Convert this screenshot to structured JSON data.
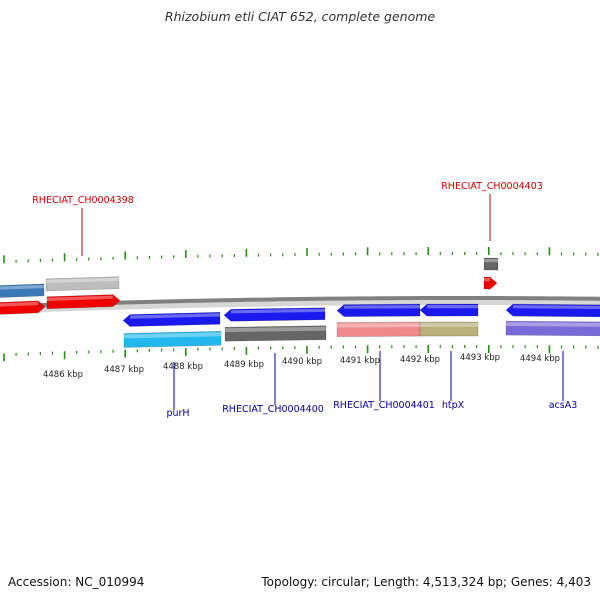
{
  "title": "Rhizobium etli CIAT 652, complete genome",
  "footer": {
    "accession": "Accession: NC_010994",
    "stats": "Topology: circular; Length: 4,513,324 bp; Genes: 4,403"
  },
  "colors": {
    "label_top": "#cc0000",
    "label_bottom": "#00009c",
    "tick": "#2a8a1a",
    "backbone": "#808080",
    "gene_red": "#ee0000",
    "gene_blue": "#1a1aee",
    "gene_grey": "#666666",
    "gene_lightgrey": "#bdbdbd",
    "gene_steelblue": "#3a78b8",
    "gene_cyan": "#22b8ee",
    "gene_pink": "#f08a8a",
    "gene_olive": "#b8b07a",
    "gene_purple": "#7a6ad8"
  },
  "axis": {
    "labels": [
      "4486 kbp",
      "4487 kbp",
      "4488 kbp",
      "4489 kbp",
      "4490 kbp",
      "4491 kbp",
      "4492 kbp",
      "4493 kbp",
      "4494 kbp"
    ]
  },
  "genes_top": [
    {
      "name": "RHECIAT_CH0004398",
      "color": "gene_red"
    },
    {
      "name": "RHECIAT_CH0004403",
      "color": "gene_red"
    }
  ],
  "genes_bottom": [
    {
      "name": "purH",
      "color": "gene_blue"
    },
    {
      "name": "RHECIAT_CH0004400",
      "color": "gene_blue"
    },
    {
      "name": "RHECIAT_CH0004401",
      "color": "gene_blue"
    },
    {
      "name": "htpX",
      "color": "gene_blue"
    },
    {
      "name": "acsA3",
      "color": "gene_blue"
    }
  ]
}
